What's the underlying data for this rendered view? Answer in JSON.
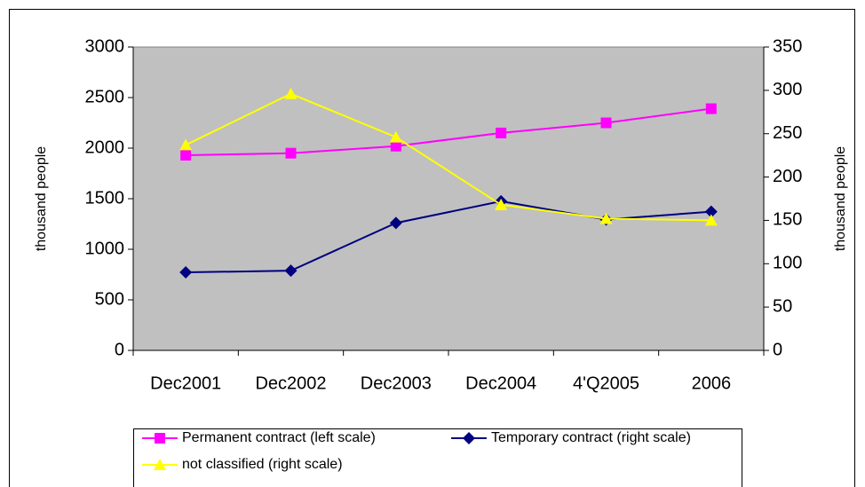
{
  "chart_data": {
    "type": "line",
    "categories": [
      "Dec2001",
      "Dec2002",
      "Dec2003",
      "Dec2004",
      "4'Q2005",
      "2006"
    ],
    "y_label": "thousand people",
    "y2_label": "thousand people",
    "ylim": [
      0,
      3000
    ],
    "yticks": [
      0,
      500,
      1000,
      1500,
      2000,
      2500,
      3000
    ],
    "y2lim": [
      0,
      350
    ],
    "y2ticks": [
      0,
      50,
      100,
      150,
      200,
      250,
      300,
      350
    ],
    "legend": "bottom",
    "series": [
      {
        "name": "Permanent contract (left scale)",
        "color": "#ff00ff",
        "marker": "square",
        "values": [
          1930,
          1950,
          2020,
          2150,
          2250,
          2390
        ]
      },
      {
        "name": "Temporary contract (right scale)",
        "color": "#000080",
        "marker": "diamond",
        "axis": "y2",
        "values": [
          90,
          92,
          147,
          172,
          151,
          160
        ]
      },
      {
        "name": "not classified (right scale)",
        "color": "#ffff00",
        "marker": "triangle",
        "axis": "y2",
        "values": [
          237,
          296,
          246,
          168,
          152,
          150
        ]
      }
    ]
  }
}
